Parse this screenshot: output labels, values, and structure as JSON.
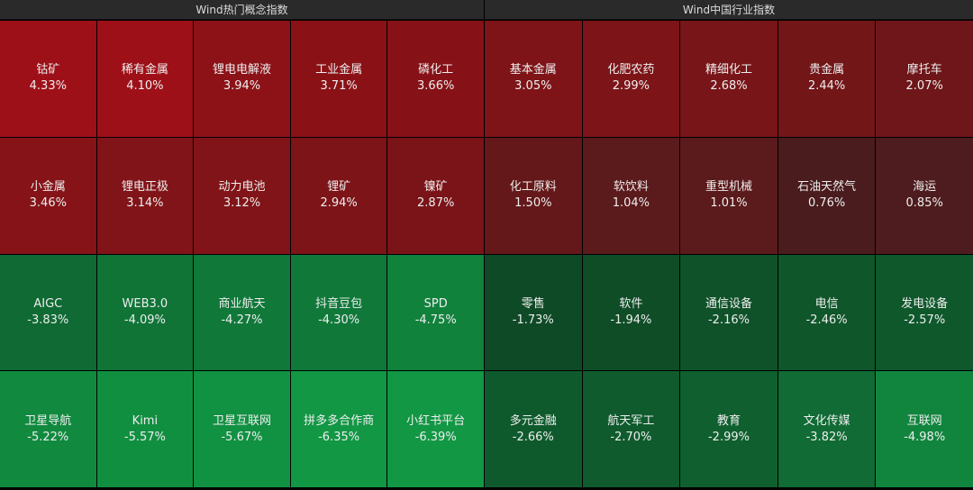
{
  "panels": [
    {
      "id": "concept",
      "title": "Wind热门概念指数",
      "tiles": [
        {
          "name": "钴矿",
          "change": "4.33%",
          "color": "#9e1018"
        },
        {
          "name": "稀有金属",
          "change": "4.10%",
          "color": "#9e1018"
        },
        {
          "name": "锂电电解液",
          "change": "3.94%",
          "color": "#8c1217"
        },
        {
          "name": "工业金属",
          "change": "3.71%",
          "color": "#8a1217"
        },
        {
          "name": "磷化工",
          "change": "3.66%",
          "color": "#861217"
        },
        {
          "name": "小金属",
          "change": "3.46%",
          "color": "#851318"
        },
        {
          "name": "锂电正极",
          "change": "3.14%",
          "color": "#811418"
        },
        {
          "name": "动力电池",
          "change": "3.12%",
          "color": "#811418"
        },
        {
          "name": "锂矿",
          "change": "2.94%",
          "color": "#7c1418"
        },
        {
          "name": "镍矿",
          "change": "2.87%",
          "color": "#7a1418"
        },
        {
          "name": "AIGC",
          "change": "-3.83%",
          "color": "#0f6a33"
        },
        {
          "name": "WEB3.0",
          "change": "-4.09%",
          "color": "#107437"
        },
        {
          "name": "商业航天",
          "change": "-4.27%",
          "color": "#107838"
        },
        {
          "name": "抖音豆包",
          "change": "-4.30%",
          "color": "#10793a"
        },
        {
          "name": "SPD",
          "change": "-4.75%",
          "color": "#11823c"
        },
        {
          "name": "卫星导航",
          "change": "-5.22%",
          "color": "#118a3f"
        },
        {
          "name": "Kimi",
          "change": "-5.57%",
          "color": "#118f41"
        },
        {
          "name": "卫星互联网",
          "change": "-5.67%",
          "color": "#119142"
        },
        {
          "name": "拼多多合作商",
          "change": "-6.35%",
          "color": "#129744"
        },
        {
          "name": "小红书平台",
          "change": "-6.39%",
          "color": "#129744"
        }
      ]
    },
    {
      "id": "industry",
      "title": "Wind中国行业指数",
      "tiles": [
        {
          "name": "基本金属",
          "change": "3.05%",
          "color": "#7e1418"
        },
        {
          "name": "化肥农药",
          "change": "2.99%",
          "color": "#7c1418"
        },
        {
          "name": "精细化工",
          "change": "2.68%",
          "color": "#771518"
        },
        {
          "name": "贵金属",
          "change": "2.44%",
          "color": "#731618"
        },
        {
          "name": "摩托车",
          "change": "2.07%",
          "color": "#6e1619"
        },
        {
          "name": "化工原料",
          "change": "1.50%",
          "color": "#641819"
        },
        {
          "name": "软饮料",
          "change": "1.04%",
          "color": "#5b1a1b"
        },
        {
          "name": "重型机械",
          "change": "1.01%",
          "color": "#5b1a1b"
        },
        {
          "name": "石油天然气",
          "change": "0.76%",
          "color": "#4a1c1e"
        },
        {
          "name": "海运",
          "change": "0.85%",
          "color": "#4e1c1e"
        },
        {
          "name": "零售",
          "change": "-1.73%",
          "color": "#0f4a26"
        },
        {
          "name": "软件",
          "change": "-1.94%",
          "color": "#0f4d27"
        },
        {
          "name": "通信设备",
          "change": "-2.16%",
          "color": "#0f5229"
        },
        {
          "name": "电信",
          "change": "-2.46%",
          "color": "#0f562b"
        },
        {
          "name": "发电设备",
          "change": "-2.57%",
          "color": "#0f582c"
        },
        {
          "name": "多元金融",
          "change": "-2.66%",
          "color": "#0f5a2d"
        },
        {
          "name": "航天军工",
          "change": "-2.70%",
          "color": "#0f5b2d"
        },
        {
          "name": "教育",
          "change": "-2.99%",
          "color": "#0f5f2f"
        },
        {
          "name": "文化传媒",
          "change": "-3.82%",
          "color": "#106b34"
        },
        {
          "name": "互联网",
          "change": "-4.98%",
          "color": "#11853e"
        }
      ]
    }
  ]
}
